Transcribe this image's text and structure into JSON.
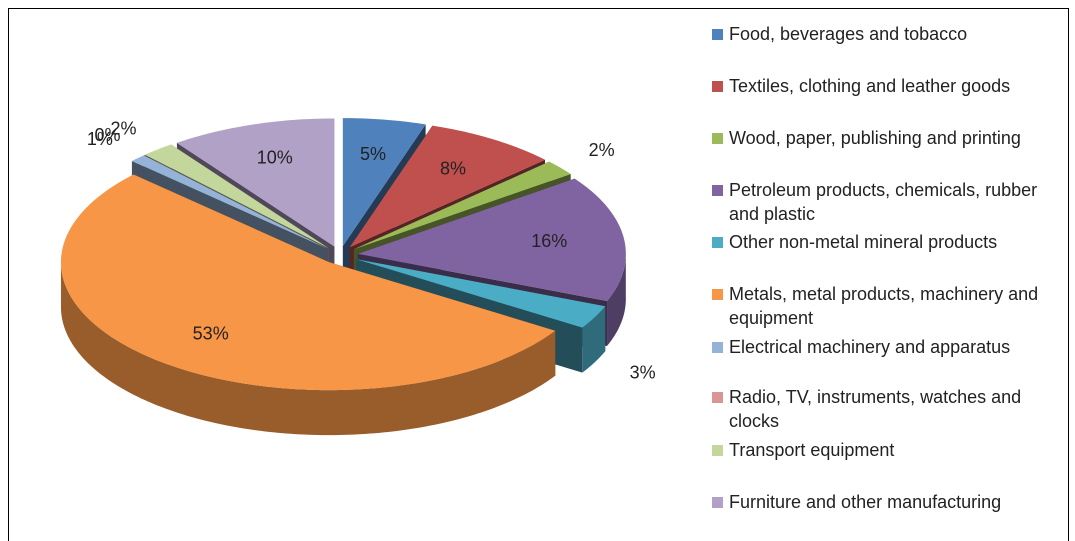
{
  "chart_data": {
    "type": "pie",
    "categories": [
      "Food, beverages and tobacco",
      "Textiles, clothing and leather goods",
      "Wood, paper, publishing and printing",
      "Petroleum products, chemicals, rubber and plastic",
      "Other non-metal mineral products",
      "Metals, metal products, machinery and equipment",
      "Electrical machinery and apparatus",
      "Radio, TV, instruments, watches and clocks",
      "Transport equipment",
      "Furniture and other manufacturing"
    ],
    "values": [
      5,
      8,
      2,
      16,
      3,
      53,
      1,
      0,
      2,
      10
    ],
    "value_labels": [
      "5%",
      "8%",
      "2%",
      "16%",
      "3%",
      "53%",
      "1%",
      "0%",
      "2%",
      "10%"
    ],
    "colors": [
      "#4f81bd",
      "#c0504d",
      "#9bbb59",
      "#8064a2",
      "#4bacc6",
      "#f79646",
      "#95b3d7",
      "#d99694",
      "#c3d69b",
      "#b2a1c7"
    ],
    "legend": "right"
  }
}
